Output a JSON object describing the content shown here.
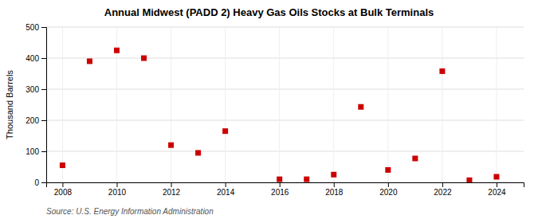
{
  "chart_data": {
    "type": "scatter",
    "title": "Annual Midwest (PADD 2) Heavy Gas Oils Stocks at Bulk Terminals",
    "ylabel": "Thousand Barrels",
    "source": "Source: U.S. Energy Information Administration",
    "x": [
      2008,
      2009,
      2010,
      2011,
      2012,
      2013,
      2014,
      2015,
      2016,
      2017,
      2018,
      2019,
      2020,
      2021,
      2022,
      2023,
      2024
    ],
    "values": [
      55,
      390,
      425,
      400,
      120,
      95,
      165,
      null,
      10,
      10,
      25,
      243,
      40,
      77,
      358,
      7,
      18
    ],
    "color": "#CC0000",
    "marker": "square",
    "xlim": [
      2007.4,
      2025.0
    ],
    "xticks": [
      2008,
      2010,
      2012,
      2014,
      2016,
      2018,
      2020,
      2022,
      2024
    ],
    "ylim": [
      0,
      500
    ],
    "yticks": [
      0,
      100,
      200,
      300,
      400,
      500
    ],
    "grid": true
  }
}
